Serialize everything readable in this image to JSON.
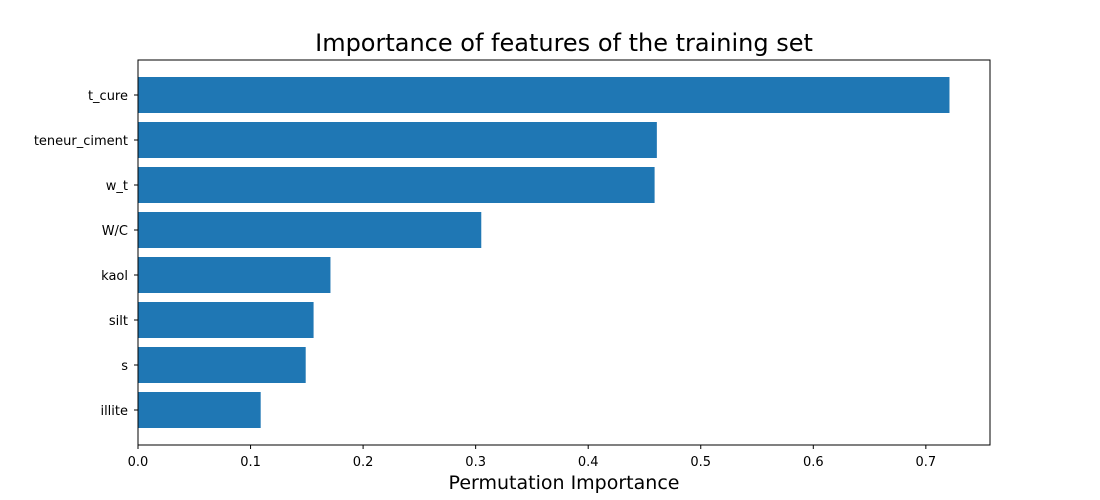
{
  "chart_data": {
    "type": "bar",
    "orientation": "horizontal",
    "title": "Importance of features of the training set",
    "xlabel": "Permutation Importance",
    "ylabel": "",
    "categories": [
      "t_cure",
      "teneur_ciment",
      "w_t",
      "W/C",
      "kaol",
      "silt",
      "s",
      "illite"
    ],
    "values": [
      0.721,
      0.461,
      0.459,
      0.305,
      0.171,
      0.156,
      0.149,
      0.109
    ],
    "xlim": [
      0.0,
      0.757
    ],
    "xticks": [
      0.0,
      0.1,
      0.2,
      0.3,
      0.4,
      0.5,
      0.6,
      0.7
    ],
    "xtick_labels": [
      "0.0",
      "0.1",
      "0.2",
      "0.3",
      "0.4",
      "0.5",
      "0.6",
      "0.7"
    ],
    "bar_color": "#1f77b4",
    "grid": false
  }
}
